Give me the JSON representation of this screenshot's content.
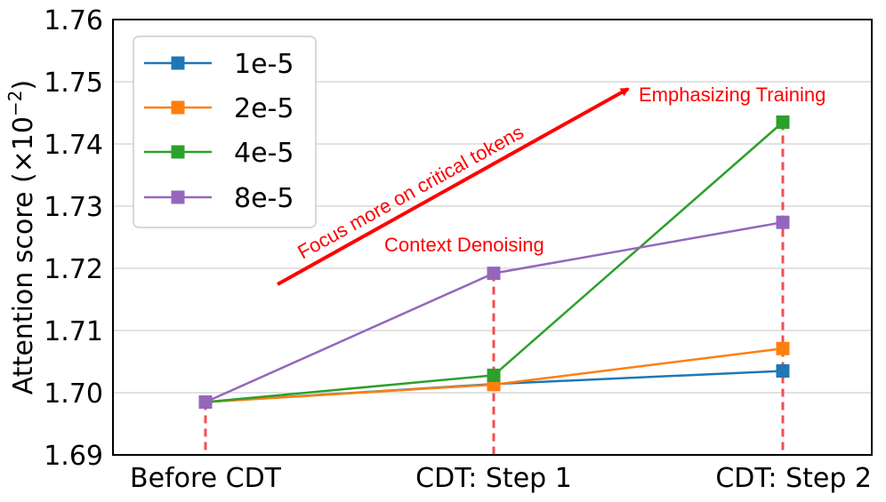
{
  "chart_data": {
    "type": "line",
    "categories": [
      "Before CDT",
      "CDT: Step 1",
      "CDT: Step 2"
    ],
    "ylabel": "Attention score (×10⁻²)",
    "ylabel_main": "Attention score",
    "ylabel_unit": "(×10",
    "ylabel_exp": "−2",
    "ylabel_close": ")",
    "ylim": [
      1.69,
      1.76
    ],
    "yticks": [
      "1.69",
      "1.70",
      "1.71",
      "1.72",
      "1.73",
      "1.74",
      "1.75",
      "1.76"
    ],
    "grid": "horizontal",
    "legend_position": "top-left",
    "series": [
      {
        "name": "1e-5",
        "color": "#1f77b4",
        "values": [
          1.6985,
          1.7014,
          1.7035
        ]
      },
      {
        "name": "2e-5",
        "color": "#ff7f0e",
        "values": [
          1.6985,
          1.7013,
          1.7071
        ]
      },
      {
        "name": "4e-5",
        "color": "#2ca02c",
        "values": [
          1.6985,
          1.7028,
          1.7435
        ]
      },
      {
        "name": "8e-5",
        "color": "#9467bd",
        "values": [
          1.6985,
          1.7192,
          1.7274
        ]
      }
    ],
    "annotations": {
      "arrow_label": "Focus more on critical tokens",
      "step1_label": "Context Denoising",
      "step2_label": "Emphasizing Training",
      "color": "#ff0000",
      "dashed_line_color": "#f04f4f"
    }
  }
}
